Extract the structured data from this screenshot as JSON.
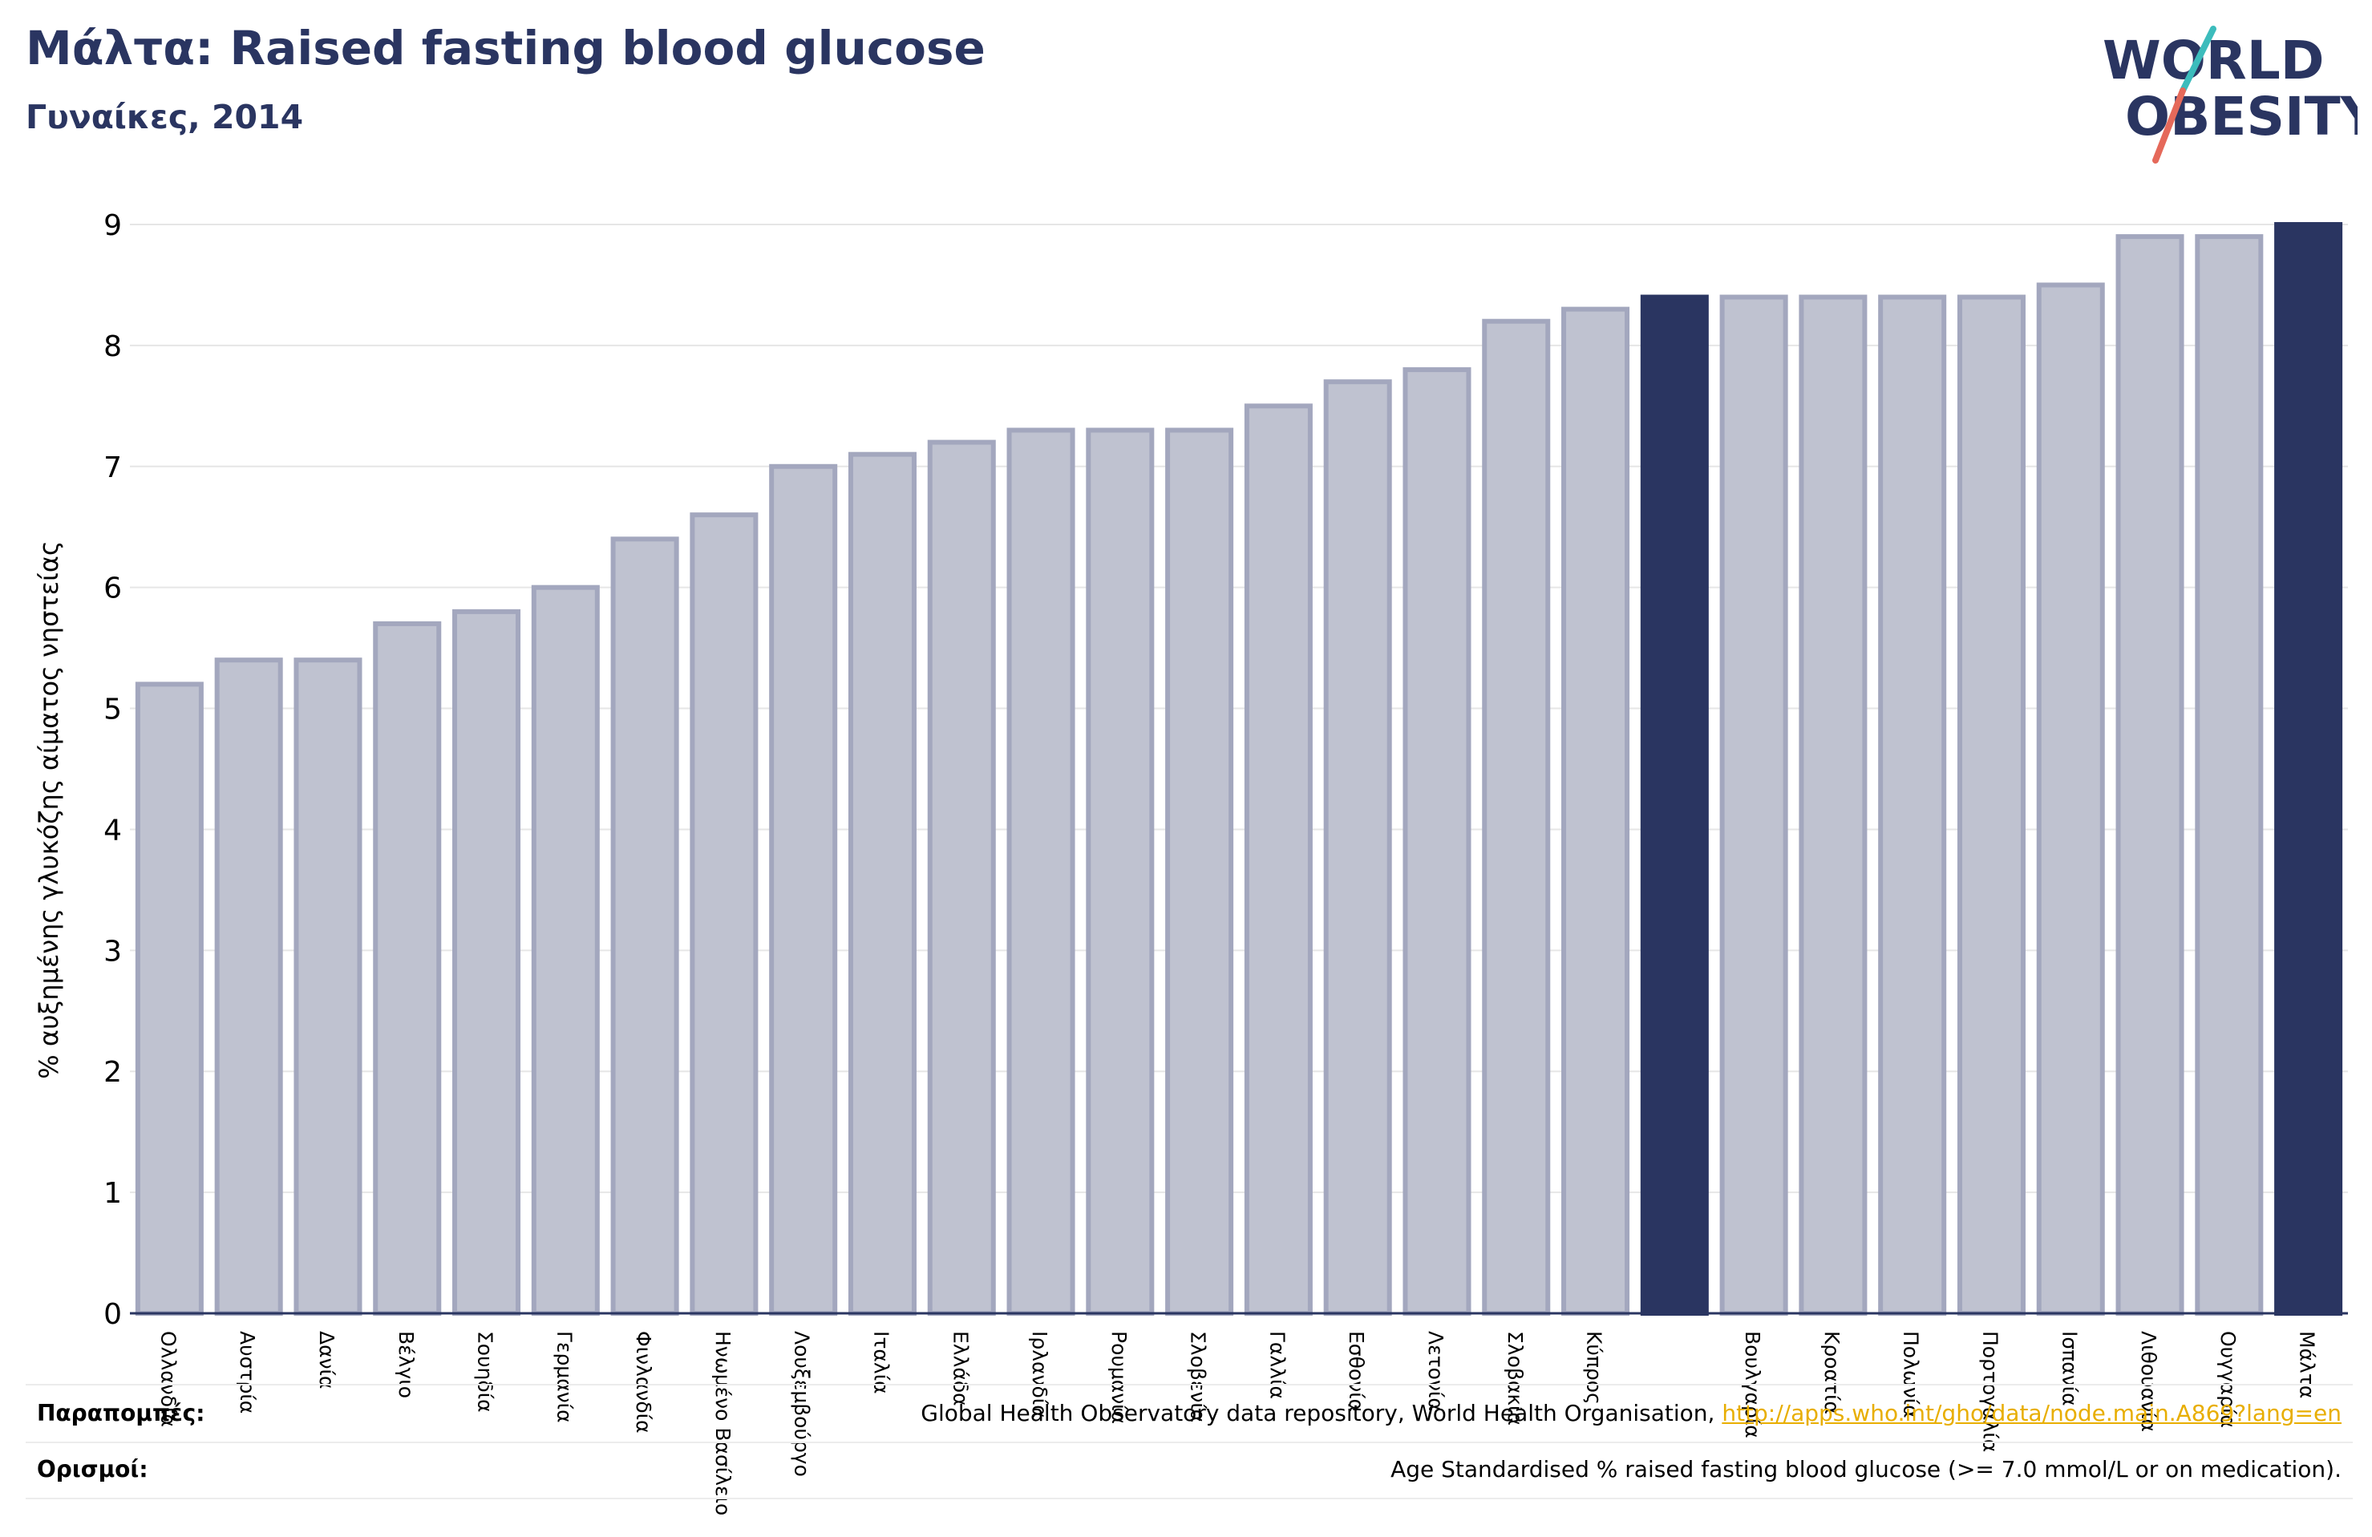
{
  "header": {
    "title": "Μάλτα: Raised fasting blood glucose",
    "subtitle": "Γυναίκες, 2014"
  },
  "logo": {
    "line1": "WORLD",
    "line2": "OBESITY",
    "colors": {
      "text": "#2a3561",
      "slash_top": "#3cbcbc",
      "slash_bottom": "#e5695a"
    }
  },
  "colors": {
    "bar": "#bfc2d0",
    "bar_border": "#a3a7be",
    "highlight": "#2a3561",
    "axis": "#2a3561",
    "grid": "#e6e6e6"
  },
  "chart_data": {
    "type": "bar",
    "title": "",
    "xlabel": "",
    "ylabel": "% αυξημένης γλυκόζης αίματος νηστείας",
    "ylim": [
      0,
      9
    ],
    "yticks": [
      0,
      1,
      2,
      3,
      4,
      5,
      6,
      7,
      8,
      9
    ],
    "grid": true,
    "categories": [
      "Ολλανδία",
      "Αυστρία",
      "Δανία",
      "Βέλγιο",
      "Σουηδία",
      "Γερμανία",
      "Φινλανδία",
      "Ηνωμένο Βασίλειο",
      "Λουξεμβούργο",
      "Ιταλία",
      "Ελλάδα",
      "Ιρλανδία",
      "Ρουμανία",
      "Σλοβενία",
      "Γαλλία",
      "Εσθονία",
      "Λετονία",
      "Σλοβακία",
      "Κύπρος",
      "",
      "Βουλγαρία",
      "Κροατία",
      "Πολωνία",
      "Πορτογαλία",
      "Ισπανία",
      "Λιθουανία",
      "Ουγγαρία",
      "Μάλτα"
    ],
    "values": [
      5.2,
      5.4,
      5.4,
      5.7,
      5.8,
      6.0,
      6.4,
      6.6,
      7.0,
      7.1,
      7.2,
      7.3,
      7.3,
      7.3,
      7.5,
      7.7,
      7.8,
      8.2,
      8.3,
      8.4,
      8.4,
      8.4,
      8.4,
      8.4,
      8.5,
      8.9,
      8.9,
      9.0
    ],
    "highlighted": [
      19,
      27
    ]
  },
  "references": {
    "sources_label": "Παραπομπές:",
    "sources_text": "Global Health Observatory data repository, World Health Organisation, ",
    "sources_link": "http://apps.who.int/gho/data/node.main.A869?lang=en",
    "definitions_label": "Ορισμοί:",
    "definitions_text": "Age Standardised % raised fasting blood glucose (>= 7.0 mmol/L or on medication)."
  }
}
